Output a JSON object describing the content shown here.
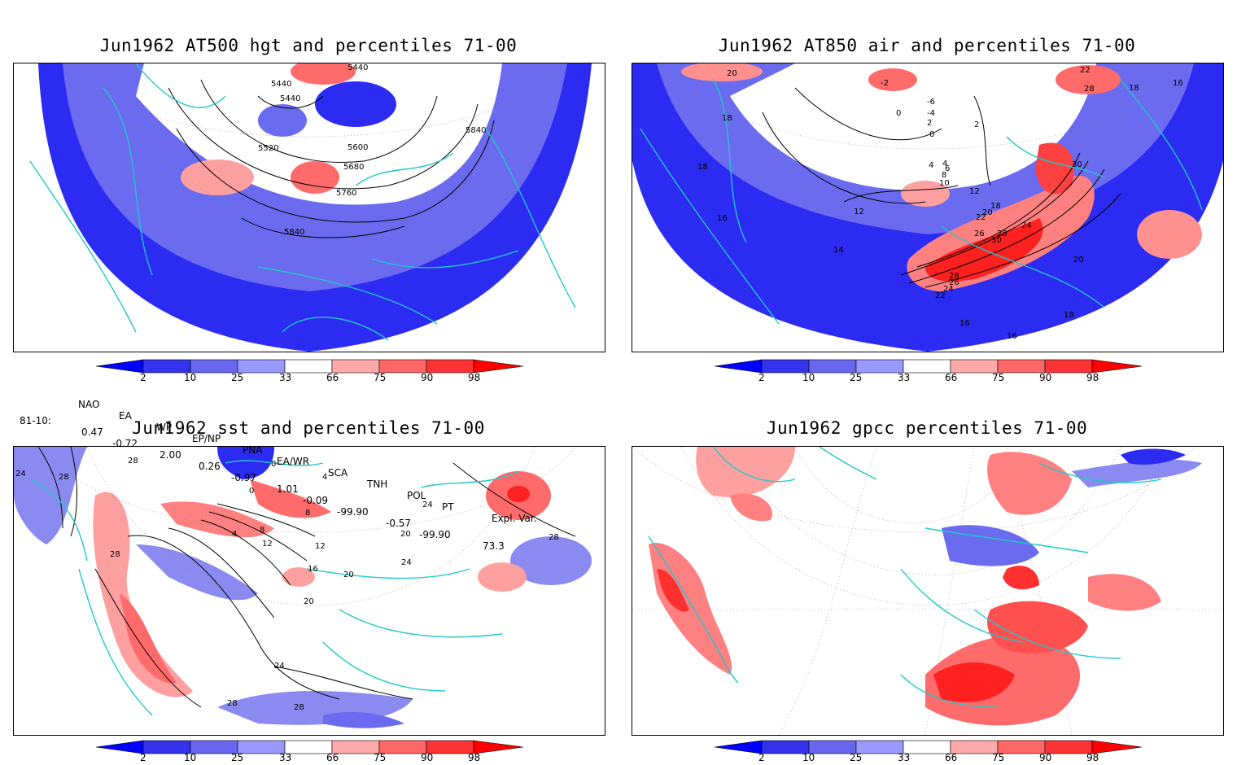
{
  "panels": [
    {
      "id": "hgt",
      "title": "Jun1962 AT500 hgt and percentiles 71-00",
      "contour_labels": [
        "5440",
        "5440",
        "5440",
        "5520",
        "5600",
        "5680",
        "5760",
        "5840",
        "5840"
      ]
    },
    {
      "id": "air",
      "title": "Jun1962 AT850 air and percentiles 71-00",
      "contour_labels": [
        "20",
        "18",
        "18",
        "16",
        "14",
        "12",
        "10",
        "8",
        "6",
        "4",
        "2",
        "0",
        "-2",
        "-4",
        "-6",
        "0",
        "2",
        "4",
        "12",
        "18",
        "20",
        "22",
        "24",
        "26",
        "28",
        "30",
        "30",
        "28",
        "26",
        "24",
        "22",
        "20",
        "18",
        "16",
        "16",
        "22",
        "28",
        "18",
        "16"
      ]
    },
    {
      "id": "sst",
      "title": "Jun1962 sst and percentiles 71-00",
      "contour_labels": [
        "24",
        "28",
        "28",
        "28",
        "0",
        "0",
        "4",
        "4",
        "8",
        "8",
        "12",
        "12",
        "16",
        "20",
        "20",
        "20",
        "24",
        "24",
        "24",
        "28",
        "28",
        "28"
      ]
    },
    {
      "id": "gpcc",
      "title": "Jun1962 gpcc percentiles 71-00",
      "contour_labels": []
    }
  ],
  "colorbar": {
    "labels": [
      "2",
      "10",
      "25",
      "33",
      "66",
      "75",
      "90",
      "98"
    ],
    "colors": [
      "#0000ff",
      "#3333ee",
      "#6666ee",
      "#9999ff",
      "#ffffff",
      "#ffaaaa",
      "#ff6666",
      "#ff3333",
      "#ff0000"
    ]
  },
  "indices": {
    "headers": [
      "NAO",
      "EA",
      "WP",
      "EP/NP",
      "PNA",
      "EA/WR",
      "SCA",
      "TNH",
      "POL",
      "PT",
      "Expl. Var."
    ],
    "row_label": "81-10:",
    "values": [
      "0.47",
      "-0.72",
      "2.00",
      "0.26",
      "-0.97",
      "1.01",
      "-0.09",
      "-99.90",
      "-0.57",
      "-99.90",
      "73.3"
    ]
  }
}
